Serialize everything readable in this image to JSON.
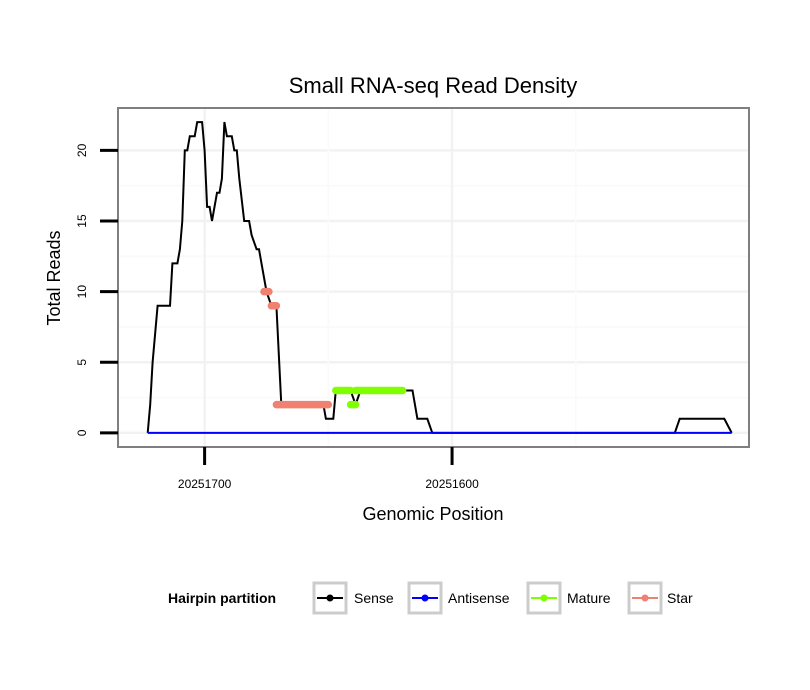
{
  "chart_data": {
    "type": "line",
    "title": "Small RNA-seq Read Density",
    "xlabel": "Genomic Position",
    "ylabel": "Total Reads",
    "x_reversed": true,
    "xlim": [
      20251735,
      20251480
    ],
    "ylim": [
      -1,
      23
    ],
    "x_ticks": [
      {
        "value": 20251700,
        "label": "20251700"
      },
      {
        "value": 20251600,
        "label": "20251600"
      }
    ],
    "y_ticks": [
      {
        "value": 0,
        "label": "0"
      },
      {
        "value": 5,
        "label": "5"
      },
      {
        "value": 10,
        "label": "10"
      },
      {
        "value": 15,
        "label": "15"
      },
      {
        "value": 20,
        "label": "20"
      }
    ],
    "grid": true,
    "legend": {
      "title": "Hairpin partition",
      "position": "bottom",
      "entries": [
        {
          "label": "Sense",
          "color": "#000000"
        },
        {
          "label": "Antisense",
          "color": "#0000ff"
        },
        {
          "label": "Mature",
          "color": "#7fff00"
        },
        {
          "label": "Star",
          "color": "#f08070"
        }
      ]
    },
    "series": [
      {
        "name": "Sense",
        "color": "#000000",
        "x": [
          20251723,
          20251722,
          20251721,
          20251720,
          20251719,
          20251718,
          20251716,
          20251714,
          20251713,
          20251711,
          20251710,
          20251709,
          20251708,
          20251707,
          20251706,
          20251704,
          20251703,
          20251701,
          20251700,
          20251699,
          20251698,
          20251697,
          20251695,
          20251694,
          20251693,
          20251692,
          20251691,
          20251690,
          20251689,
          20251688,
          20251687,
          20251686,
          20251684,
          20251683,
          20251682,
          20251681,
          20251679,
          20251678,
          20251677,
          20251675,
          20251673,
          20251671,
          20251669,
          20251667,
          20251665,
          20251663,
          20251661,
          20251659,
          20251658,
          20251656,
          20251654,
          20251653,
          20251652,
          20251651,
          20251650,
          20251649,
          20251648,
          20251647,
          20251645,
          20251643,
          20251641,
          20251639,
          20251637,
          20251636,
          20251634,
          20251632,
          20251630,
          20251628,
          20251626,
          20251624,
          20251622,
          20251620,
          20251618,
          20251616,
          20251614,
          20251612,
          20251610,
          20251608,
          20251605,
          20251600,
          20251580,
          20251560,
          20251540,
          20251520,
          20251510,
          20251508,
          20251500,
          20251492,
          20251490,
          20251487
        ],
        "values": [
          0,
          2,
          5,
          7,
          9,
          9,
          9,
          9,
          12,
          12,
          13,
          15,
          20,
          20,
          21,
          21,
          22,
          22,
          20,
          16,
          16,
          15,
          17,
          17,
          18,
          22,
          21,
          21,
          21,
          20,
          20,
          18,
          15,
          15,
          15,
          14,
          13,
          13,
          12,
          10,
          9,
          9,
          2,
          2,
          2,
          2,
          2,
          2,
          2,
          2,
          2,
          2,
          2,
          1,
          1,
          1,
          1,
          3,
          3,
          3,
          3,
          2,
          3,
          3,
          3,
          3,
          3,
          3,
          3,
          3,
          3,
          3,
          3,
          3,
          1,
          1,
          1,
          0,
          0,
          0,
          0,
          0,
          0,
          0,
          0,
          1,
          1,
          1,
          1,
          0
        ]
      },
      {
        "name": "Antisense",
        "color": "#0000ff",
        "x": [
          20251723,
          20251487
        ],
        "values": [
          0,
          0
        ]
      },
      {
        "name": "Mature",
        "color": "#7fff00",
        "segments": [
          {
            "x": [
              20251647,
              20251641
            ],
            "values": [
              3,
              3
            ]
          },
          {
            "x": [
              20251641,
              20251639
            ],
            "values": [
              2,
              2
            ]
          },
          {
            "x": [
              20251639,
              20251620
            ],
            "values": [
              3,
              3
            ]
          }
        ]
      },
      {
        "name": "Star",
        "color": "#f08070",
        "segments": [
          {
            "x": [
              20251676,
              20251674
            ],
            "values": [
              10,
              10
            ]
          },
          {
            "x": [
              20251673,
              20251671
            ],
            "values": [
              9,
              9
            ]
          },
          {
            "x": [
              20251671,
              20251650
            ],
            "values": [
              2,
              2
            ]
          }
        ]
      }
    ]
  }
}
